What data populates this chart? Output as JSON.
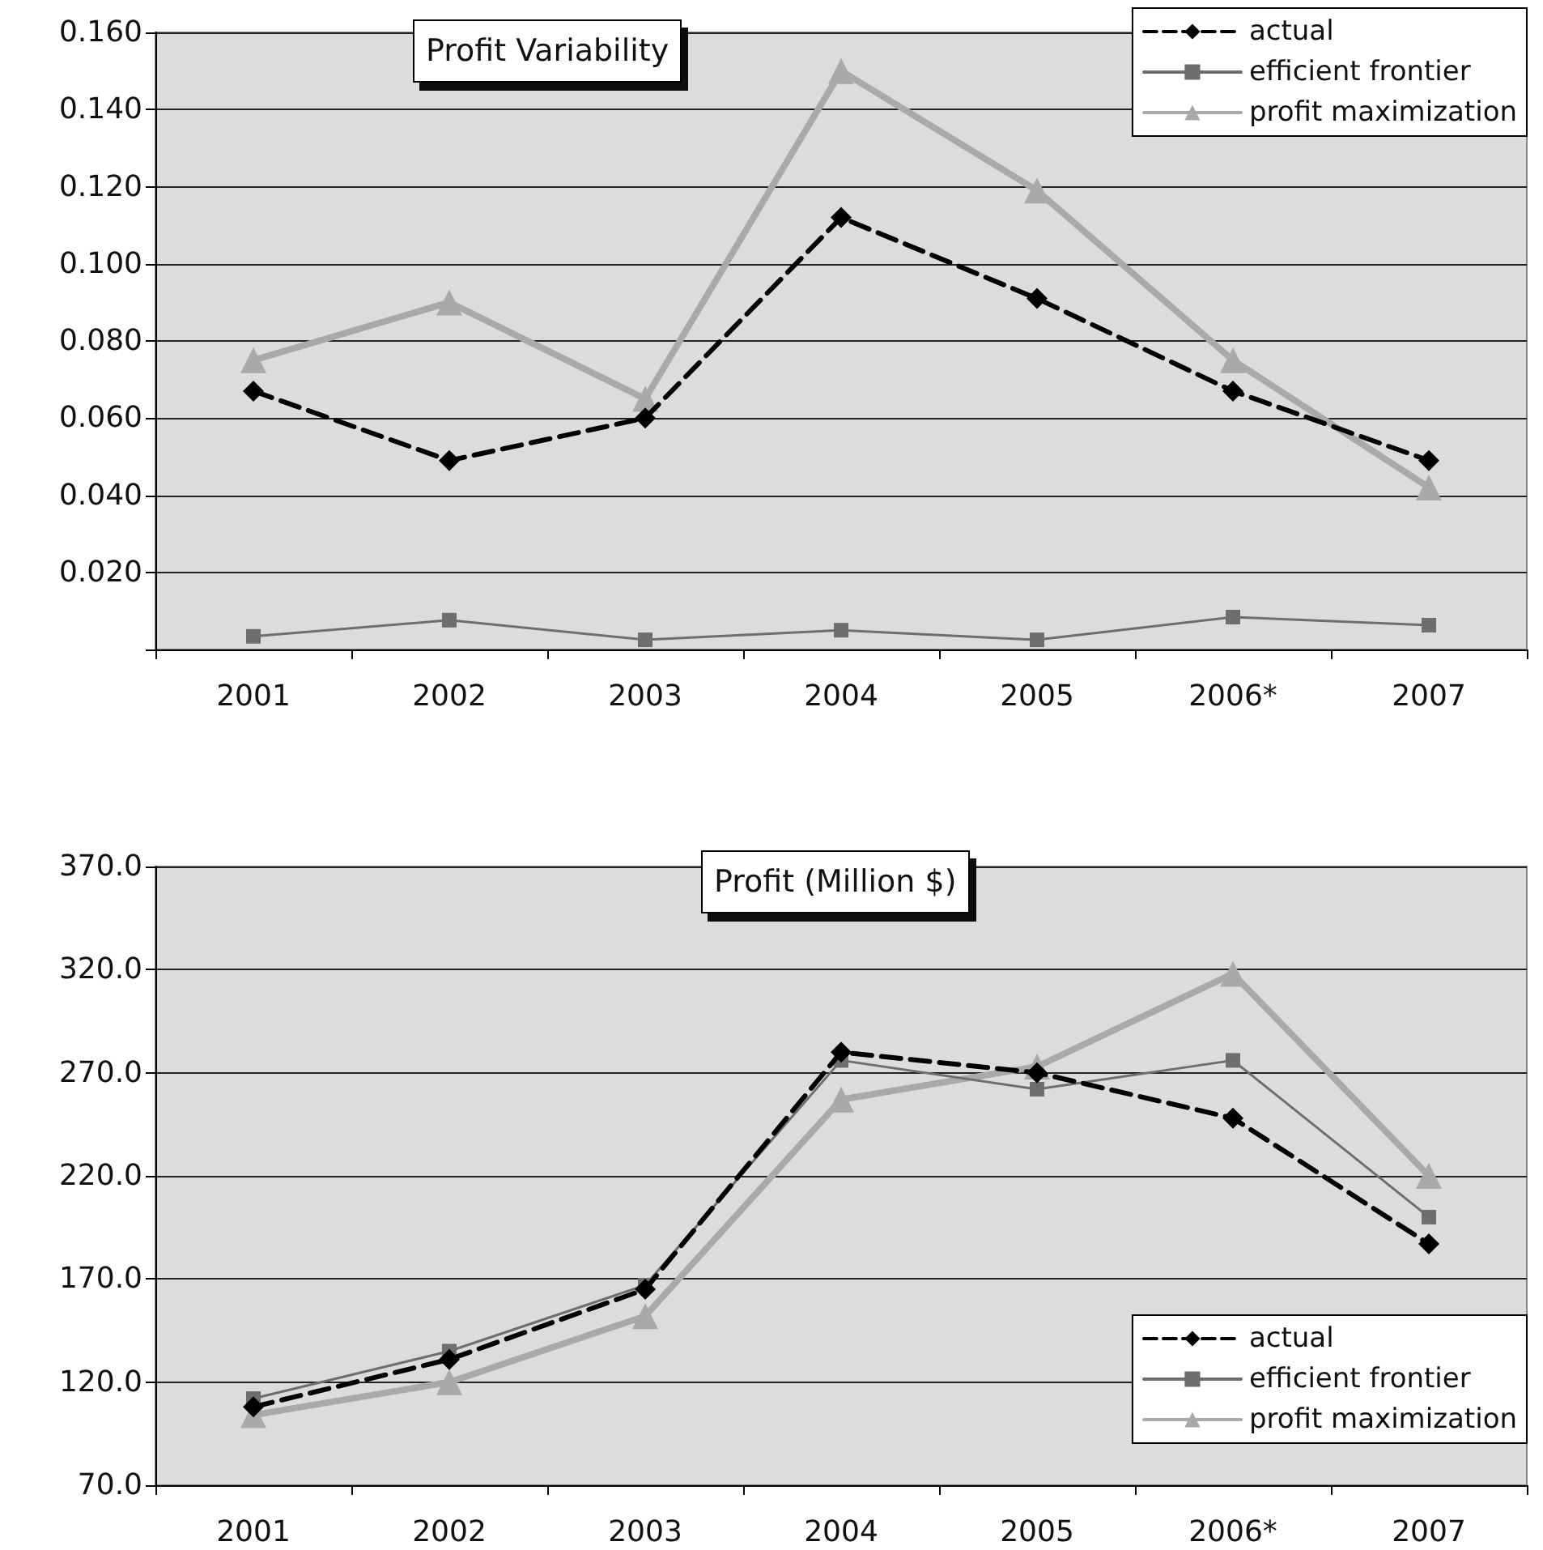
{
  "chart_data": [
    {
      "type": "line",
      "title": "Profit Variability",
      "categories": [
        "2001",
        "2002",
        "2003",
        "2004",
        "2005",
        "2006*",
        "2007"
      ],
      "series": [
        {
          "name": "actual",
          "color": "#000000",
          "marker": "diamond",
          "line_style": "dashed",
          "values": [
            0.067,
            0.049,
            0.06,
            0.112,
            0.091,
            0.067,
            0.049
          ]
        },
        {
          "name": "efficient frontier",
          "color": "#6e6e6e",
          "marker": "square",
          "line_style": "solid",
          "values": [
            0.0034,
            0.0076,
            0.0025,
            0.005,
            0.0025,
            0.0084,
            0.0063
          ]
        },
        {
          "name": "profit maximization",
          "color": "#a9a9a9",
          "marker": "triangle",
          "line_style": "solid",
          "values": [
            0.075,
            0.09,
            0.065,
            0.15,
            0.119,
            0.075,
            0.042
          ]
        }
      ],
      "ylim": [
        0,
        0.16
      ],
      "yticks": [
        {
          "value": 0,
          "label": null
        },
        {
          "value": 0.02,
          "label": "0.020"
        },
        {
          "value": 0.04,
          "label": "0.040"
        },
        {
          "value": 0.06,
          "label": "0.060"
        },
        {
          "value": 0.08,
          "label": "0.080"
        },
        {
          "value": 0.1,
          "label": "0.100"
        },
        {
          "value": 0.12,
          "label": "0.120"
        },
        {
          "value": 0.14,
          "label": "0.140"
        },
        {
          "value": 0.16,
          "label": "0.160"
        }
      ],
      "grid": "y",
      "legend": "top right"
    },
    {
      "type": "line",
      "title": "Profit (Million $)",
      "categories": [
        "2001",
        "2002",
        "2003",
        "2004",
        "2005",
        "2006*",
        "2007"
      ],
      "series": [
        {
          "name": "actual",
          "color": "#000000",
          "marker": "diamond",
          "line_style": "dashed",
          "values": [
            108,
            131,
            165,
            280,
            270,
            248,
            187
          ]
        },
        {
          "name": "efficient frontier",
          "color": "#6e6e6e",
          "marker": "square",
          "line_style": "solid",
          "values": [
            112,
            135,
            167,
            276,
            262,
            276,
            200
          ]
        },
        {
          "name": "profit maximization",
          "color": "#a9a9a9",
          "marker": "triangle",
          "line_style": "solid",
          "values": [
            104,
            120,
            152,
            257,
            273,
            318,
            220
          ]
        }
      ],
      "ylim": [
        70,
        370
      ],
      "yticks": [
        {
          "value": 70,
          "label": "70.0"
        },
        {
          "value": 120,
          "label": "120.0"
        },
        {
          "value": 170,
          "label": "170.0"
        },
        {
          "value": 220,
          "label": "220.0"
        },
        {
          "value": 270,
          "label": "270.0"
        },
        {
          "value": 320,
          "label": "320.0"
        },
        {
          "value": 370,
          "label": "370.0"
        }
      ],
      "grid": "y",
      "legend": "bottom right"
    }
  ]
}
